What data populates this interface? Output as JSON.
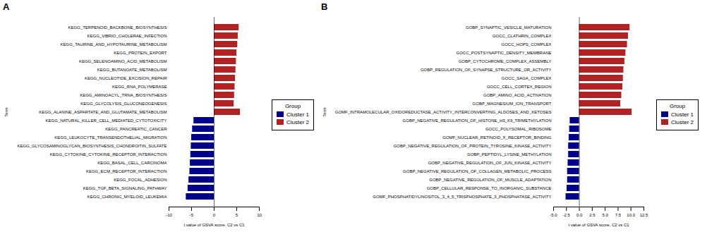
{
  "chart_data": [
    {
      "type": "bar",
      "orientation": "horizontal",
      "title": "A",
      "xlabel": "t value of GSVA score, C2 vs C1",
      "ylabel": "Term",
      "categories": [
        "KEGG_CHRONIC_MYELOID_LEUKEMIA",
        "KEGG_TGF_BETA_SIGNALING_PATHWAY",
        "KEGG_FOCAL_ADHESION",
        "KEGG_ECM_RECEPTOR_INTERACTION",
        "KEGG_BASAL_CELL_CARCINOMA",
        "KEGG_CYTOKINE_CYTOKINE_RECEPTOR_INTERACTION",
        "KEGG_GLYCOSAMINOGLYCAN_BIOSYNTHESIS_CHONDROITIN_SULFATE",
        "KEGG_LEUKOCYTE_TRANSENDOTHELIAL_MIGRATION",
        "KEGG_PANCREATIC_CANCER",
        "KEGG_NATURAL_KILLER_CELL_MEDIATED_CYTOTOXICITY",
        "KEGG_ALANINE_ASPARTATE_AND_GLUTAMATE_METABOLISM",
        "KEGG_GLYCOLYSIS_GLUCONEOGENESIS",
        "KEGG_AMINOACYL_TRNA_BIOSYNTHESIS",
        "KEGG_RNA_POLYMERASE",
        "KEGG_NUCLEOTIDE_EXCISION_REPAIR",
        "KEGG_BUTANOATE_METABOLISM",
        "KEGG_SELENOAMINO_ACID_METABOLISM",
        "KEGG_PROTEIN_EXPORT",
        "KEGG_TAURINE_AND_HYPOTAURINE_METABOLISM",
        "KEGG_VIBRIO_CHOLERAE_INFECTION",
        "KEGG_TERPENOID_BACKBONE_BIOSYNTHESIS"
      ],
      "series": [
        {
          "name": "Cluster 1",
          "color": "#00008B",
          "values": [
            -6.2,
            -5.8,
            -5.6,
            -5.4,
            -5.3,
            -5.2,
            -5.1,
            -5.0,
            -4.8,
            -4.5,
            null,
            null,
            null,
            null,
            null,
            null,
            null,
            null,
            null,
            null,
            null
          ]
        },
        {
          "name": "Cluster 2",
          "color": "#B22222",
          "values": [
            null,
            null,
            null,
            null,
            null,
            null,
            null,
            null,
            null,
            null,
            5.8,
            4.4,
            4.5,
            4.6,
            4.7,
            4.8,
            4.9,
            5.0,
            5.2,
            5.3,
            5.5
          ]
        }
      ],
      "xlim": [
        -10,
        10
      ],
      "xticks": [
        -10,
        -5,
        0,
        5,
        10
      ],
      "legend": "right",
      "legend_title": "Group"
    },
    {
      "type": "bar",
      "orientation": "horizontal",
      "title": "B",
      "xlabel": "t value of GSVA score, C2 vs C1",
      "ylabel": "Term",
      "categories": [
        "GOMF_PHOSPHATIDYLINOSITOL_3_4_5_TRISPHOSPHATE_3_PHOSPHATASE_ACTIVITY",
        "GOBP_CELLULAR_RESPONSE_TO_INORGANIC_SUBSTANCE",
        "GOBP_NEGATIVE_REGULATION_OF_MUSCLE_ADAPTATION",
        "GOBP_NEGATIVE_REGULATION_OF_COLLAGEN_METABOLIC_PROCESS",
        "GOBP_NEGATIVE_REGULATION_OF_JUN_KINASE_ACTIVITY",
        "GOBP_PEPTIDYL_LYSINE_METHYLATION",
        "GOBP_NEGATIVE_REGULATION_OF_PROTEIN_TYROSINE_KINASE_ACTIVITY",
        "GOMF_NUCLEAR_RETINOID_X_RECEPTOR_BINDING",
        "GOCC_POLYSOMAL_RIBOSOME",
        "GOBP_NEGATIVE_REGULATION_OF_HISTONE_H3_K9_TRIMETHYLATION",
        "GOMF_INTRAMOLECULAR_OXIDOREDUCTASE_ACTIVITY_INTERCONVERTING_ALDOSES_AND_KETOSES",
        "GOBP_MAGNESIUM_ION_TRANSPORT",
        "GOBP_AMINO_ACID_ACTIVATION",
        "GOCC_CELL_CORTEX_REGION",
        "GOCC_SAGA_COMPLEX",
        "GOBP_REGULATION_OF_SYNAPSE_STRUCTURE_OR_ACTIVITY",
        "GOBP_CYTOCHROME_COMPLEX_ASSEMBLY",
        "GOCC_POSTSYNAPTIC_DENSITY_MEMBRANE",
        "GOCC_HOPS_COMPLEX",
        "GOCC_CLATHRIN_COMPLEX",
        "GOBP_SYNAPTIC_VESICLE_MATURATION"
      ],
      "series": [
        {
          "name": "Cluster 1",
          "color": "#00008B",
          "values": [
            -2.6,
            -2.4,
            -2.3,
            -2.3,
            -2.2,
            -2.1,
            -2.1,
            -2.0,
            -1.9,
            -1.8,
            null,
            null,
            null,
            null,
            null,
            null,
            null,
            null,
            null,
            null,
            null
          ]
        },
        {
          "name": "Cluster 2",
          "color": "#B22222",
          "values": [
            null,
            null,
            null,
            null,
            null,
            null,
            null,
            null,
            null,
            null,
            10.2,
            8.0,
            8.2,
            8.4,
            8.5,
            8.6,
            8.8,
            9.0,
            9.3,
            9.5,
            9.8
          ]
        }
      ],
      "xlim": [
        -5.0,
        12.5
      ],
      "xticks": [
        {
          "value": -5.0,
          "label": "-5.0"
        },
        -2.5,
        {
          "value": 0,
          "label": "0.0"
        },
        2.5,
        {
          "value": 5.0,
          "label": "5.0"
        },
        7.5,
        {
          "value": 10.0,
          "label": "10.0"
        },
        12.5
      ],
      "legend": "right",
      "legend_title": "Group"
    }
  ]
}
